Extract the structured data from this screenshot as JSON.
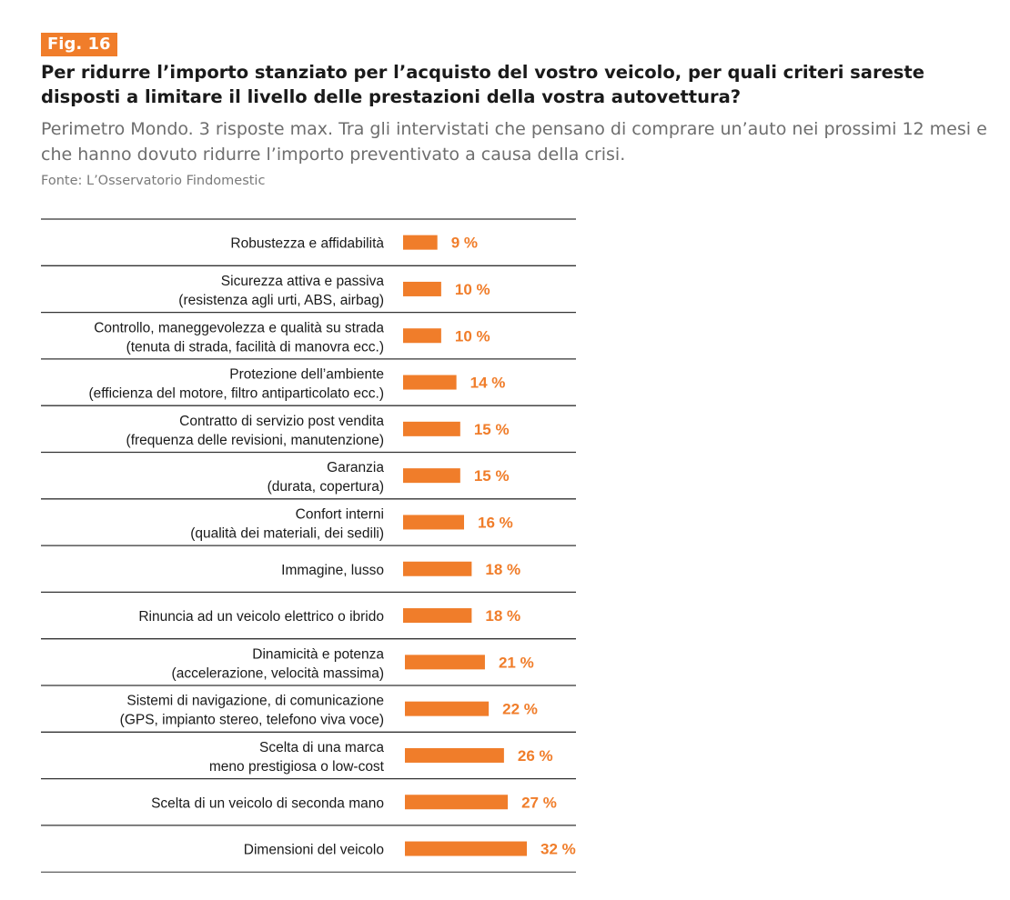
{
  "figure": {
    "badge": "Fig. 16",
    "title": "Per ridurre l’importo stanziato per l’acquisto del vostro veicolo, per quali criteri sareste disposti a limitare il livello delle prestazioni della vostra autovettura?",
    "subtitle": "Perimetro Mondo. 3 risposte max. Tra gli intervistati che pensano di comprare un’auto nei prossimi 12 mesi e che hanno dovuto ridurre l’importo preventivato a causa della crisi.",
    "source": "Fonte: L’Osservatorio Findomestic"
  },
  "colors": {
    "accent": "#f07d2a",
    "rule": "#333333",
    "text": "#1a1a1a"
  },
  "chart_data": {
    "type": "bar",
    "orientation": "horizontal",
    "unit": "%",
    "xlim": [
      0,
      32
    ],
    "grid": false,
    "categories": [
      [
        "Robustezza e affidabilità"
      ],
      [
        "Sicurezza attiva e passiva",
        "(resistenza agli urti, ABS, airbag)"
      ],
      [
        "Controllo, maneggevolezza e qualità su strada",
        "(tenuta di strada, facilità di manovra ecc.)"
      ],
      [
        "Protezione dell’ambiente",
        "(efficienza del motore, filtro antiparticolato ecc.)"
      ],
      [
        "Contratto di servizio post vendita",
        "(frequenza delle revisioni, manutenzione)"
      ],
      [
        "Garanzia",
        "(durata, copertura)"
      ],
      [
        "Confort interni",
        "(qualità dei materiali, dei sedili)"
      ],
      [
        "Immagine, lusso"
      ],
      [
        "Rinuncia ad un veicolo elettrico o ibrido"
      ],
      [
        "Dinamicità e potenza",
        "(accelerazione, velocità massima)"
      ],
      [
        "Sistemi di navigazione, di comunicazione",
        "(GPS, impianto stereo, telefono viva voce)"
      ],
      [
        "Scelta di una marca",
        "meno prestigiosa o low-cost"
      ],
      [
        "Scelta di un veicolo di seconda mano"
      ],
      [
        "Dimensioni del veicolo"
      ]
    ],
    "values": [
      9,
      10,
      10,
      14,
      15,
      15,
      16,
      18,
      18,
      21,
      22,
      26,
      27,
      32
    ],
    "value_labels": [
      "9 %",
      "10 %",
      "10 %",
      "14 %",
      "15 %",
      "15 %",
      "16 %",
      "18 %",
      "18 %",
      "21 %",
      "22 %",
      "26 %",
      "27 %",
      "32 %"
    ]
  }
}
